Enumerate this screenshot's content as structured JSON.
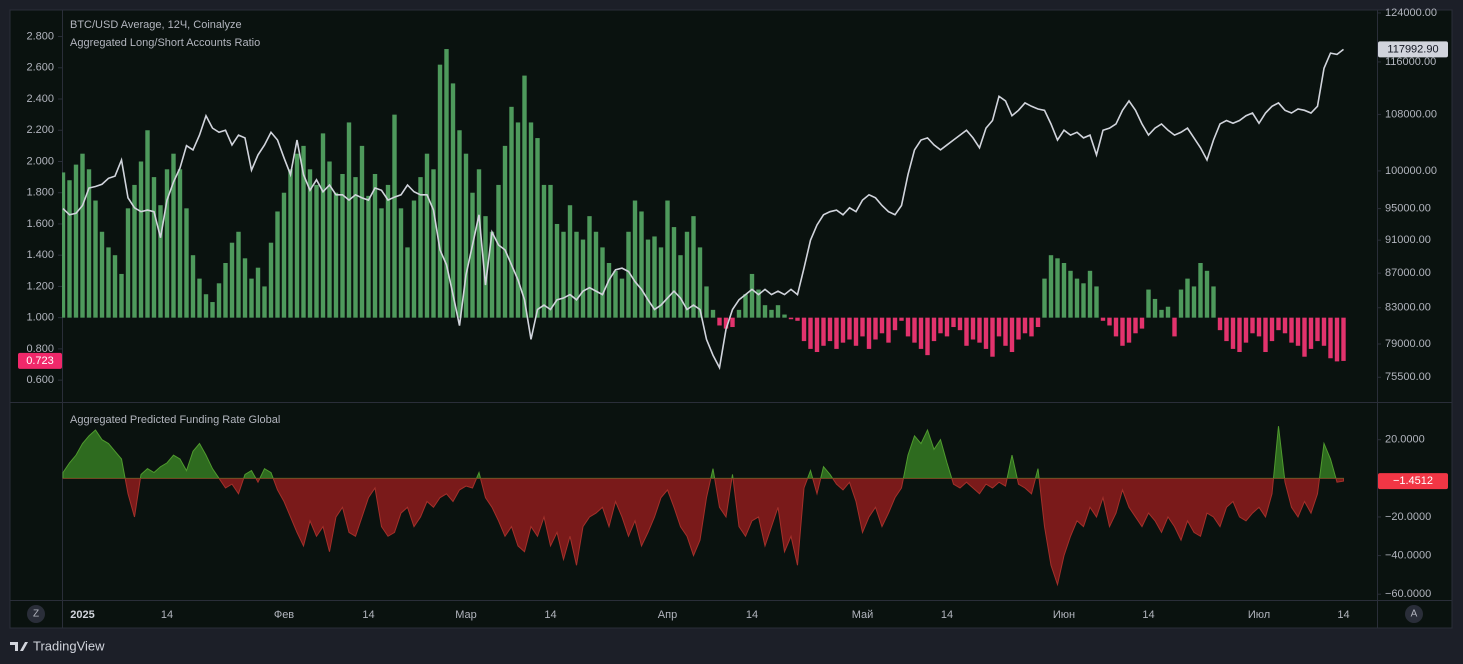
{
  "chart_data": [
    {
      "type": "bar",
      "categories": [
        null,
        null,
        null,
        "2025",
        null,
        null,
        null,
        null,
        null,
        null,
        null,
        null,
        null,
        null,
        null,
        null,
        "14",
        null,
        null,
        null,
        null,
        null,
        null,
        null,
        null,
        null,
        null,
        null,
        null,
        null,
        null,
        null,
        null,
        null,
        "Фев",
        null,
        null,
        null,
        null,
        null,
        null,
        null,
        null,
        null,
        null,
        null,
        null,
        "14",
        null,
        null,
        null,
        null,
        null,
        null,
        null,
        null,
        null,
        null,
        null,
        null,
        null,
        null,
        "Мар",
        null,
        null,
        null,
        null,
        null,
        null,
        null,
        null,
        null,
        null,
        null,
        null,
        "14",
        null,
        null,
        null,
        null,
        null,
        null,
        null,
        null,
        null,
        null,
        null,
        null,
        null,
        null,
        null,
        null,
        null,
        "Апр",
        null,
        null,
        null,
        null,
        null,
        null,
        null,
        null,
        null,
        null,
        null,
        null,
        "14",
        null,
        null,
        null,
        null,
        null,
        null,
        null,
        null,
        null,
        null,
        null,
        null,
        null,
        null,
        null,
        null,
        "Май",
        null,
        null,
        null,
        null,
        null,
        null,
        null,
        null,
        null,
        null,
        null,
        null,
        "14",
        null,
        null,
        null,
        null,
        null,
        null,
        null,
        null,
        null,
        null,
        null,
        null,
        null,
        null,
        null,
        null,
        null,
        "Июн",
        null,
        null,
        null,
        null,
        null,
        null,
        null,
        null,
        null,
        null,
        null,
        null,
        "14",
        null,
        null,
        null,
        null,
        null,
        null,
        null,
        null,
        null,
        null,
        null,
        null,
        null,
        null,
        null,
        null,
        "Июл",
        null,
        null,
        null,
        null,
        null,
        null,
        null,
        null,
        null,
        null,
        null,
        null,
        "14"
      ],
      "series": [
        {
          "name": "Aggregated Long/Short Accounts Ratio",
          "type": "bar",
          "axis": "y",
          "base": 1,
          "color_up": "#4e9a5c",
          "color_down": "#e2336d",
          "badge": {
            "value": 0.723,
            "label": "0.723"
          },
          "badge_color": "#f0286a",
          "badge_text_color": "#ffffff",
          "values": [
            1.93,
            1.88,
            1.98,
            2.05,
            1.95,
            1.75,
            1.55,
            1.45,
            1.4,
            1.28,
            1.7,
            1.85,
            2.0,
            2.2,
            1.9,
            1.72,
            1.95,
            2.05,
            1.95,
            1.7,
            1.4,
            1.25,
            1.15,
            1.1,
            1.22,
            1.35,
            1.48,
            1.55,
            1.38,
            1.25,
            1.32,
            1.2,
            1.48,
            1.68,
            1.8,
            1.95,
            2.05,
            2.1,
            1.95,
            1.85,
            2.18,
            2.0,
            1.8,
            1.92,
            2.25,
            1.9,
            2.1,
            1.78,
            1.92,
            1.7,
            1.85,
            2.3,
            1.7,
            1.45,
            1.75,
            1.9,
            2.05,
            1.95,
            2.62,
            2.72,
            2.5,
            2.2,
            2.05,
            1.8,
            1.95,
            1.65,
            1.55,
            1.85,
            2.1,
            2.35,
            2.25,
            2.55,
            2.25,
            2.15,
            1.85,
            1.85,
            1.6,
            1.55,
            1.72,
            1.55,
            1.5,
            1.65,
            1.55,
            1.45,
            1.35,
            1.3,
            1.25,
            1.55,
            1.75,
            1.68,
            1.5,
            1.52,
            1.45,
            1.75,
            1.58,
            1.4,
            1.55,
            1.65,
            1.45,
            1.2,
            1.05,
            0.95,
            0.93,
            0.94,
            1.05,
            1.15,
            1.28,
            1.18,
            1.08,
            1.05,
            1.08,
            1.02,
            0.99,
            0.98,
            0.85,
            0.8,
            0.78,
            0.82,
            0.85,
            0.8,
            0.84,
            0.86,
            0.82,
            0.88,
            0.8,
            0.86,
            0.9,
            0.84,
            0.92,
            0.98,
            0.88,
            0.84,
            0.8,
            0.76,
            0.85,
            0.9,
            0.88,
            0.94,
            0.92,
            0.82,
            0.86,
            0.84,
            0.8,
            0.75,
            0.88,
            0.82,
            0.78,
            0.86,
            0.9,
            0.88,
            0.94,
            1.25,
            1.4,
            1.38,
            1.35,
            1.3,
            1.25,
            1.22,
            1.3,
            1.2,
            0.98,
            0.95,
            0.88,
            0.82,
            0.84,
            0.9,
            0.93,
            1.18,
            1.12,
            1.05,
            1.07,
            0.88,
            1.18,
            1.25,
            1.2,
            1.35,
            1.3,
            1.2,
            0.92,
            0.85,
            0.8,
            0.78,
            0.84,
            0.9,
            0.88,
            0.78,
            0.85,
            0.92,
            0.9,
            0.84,
            0.82,
            0.75,
            0.8,
            0.85,
            0.82,
            0.74,
            0.72,
            0.723
          ]
        },
        {
          "name": "BTC/USD Average, 12Ч, Coinalyze",
          "type": "line",
          "axis": "y2",
          "color": "#d1d4dc",
          "badge": {
            "value": 117992.9,
            "label": "117992.90"
          },
          "badge_color": "#d1d4dc",
          "badge_text_color": "#131722",
          "values": [
            95000,
            94200,
            94400,
            95400,
            97700,
            97900,
            98200,
            99000,
            99300,
            101500,
            96400,
            95100,
            94600,
            94800,
            94600,
            91300,
            96100,
            98500,
            100400,
            103500,
            102900,
            105000,
            107800,
            106000,
            105400,
            105700,
            103600,
            105000,
            104600,
            100100,
            102200,
            103600,
            105400,
            104300,
            101800,
            99500,
            104300,
            99500,
            97400,
            98800,
            97200,
            98100,
            96800,
            96800,
            96100,
            96800,
            96400,
            96100,
            97700,
            97400,
            96100,
            96500,
            96800,
            98100,
            97200,
            96800,
            96800,
            94800,
            89800,
            88000,
            84500,
            81000,
            86800,
            90400,
            94200,
            85600,
            92000,
            90400,
            89800,
            88000,
            86200,
            83900,
            79500,
            82800,
            83300,
            82800,
            83900,
            84100,
            84500,
            83900,
            84900,
            85300,
            84900,
            84500,
            86200,
            87400,
            87600,
            87200,
            86000,
            85100,
            83900,
            82800,
            83300,
            84100,
            84900,
            84100,
            82800,
            83300,
            82800,
            79500,
            77800,
            76500,
            80600,
            82800,
            83900,
            84500,
            85100,
            84500,
            85100,
            84500,
            84900,
            84500,
            85100,
            84500,
            87600,
            91000,
            92900,
            94200,
            94600,
            94800,
            94200,
            95100,
            94600,
            96100,
            96800,
            96400,
            95400,
            94600,
            94200,
            95400,
            99500,
            102900,
            104300,
            104600,
            103600,
            102900,
            103600,
            104300,
            105000,
            105700,
            104600,
            103200,
            106000,
            107100,
            110700,
            110000,
            107800,
            108600,
            109700,
            109200,
            108800,
            108600,
            106600,
            104300,
            105700,
            105000,
            105400,
            104600,
            105000,
            102200,
            105700,
            106000,
            106600,
            108600,
            110000,
            108600,
            106600,
            105000,
            106000,
            106600,
            105700,
            105000,
            105400,
            106000,
            104600,
            103200,
            101500,
            104300,
            106600,
            107100,
            106700,
            107100,
            107800,
            108200,
            106700,
            108200,
            109200,
            109700,
            108600,
            108200,
            108800,
            108600,
            108200,
            109200,
            115000,
            117400,
            117200,
            117992.9
          ]
        }
      ],
      "ylim": [
        0.46,
        2.97
      ],
      "yticks": [
        {
          "value": 2.8,
          "label": "2.800"
        },
        {
          "value": 2.6,
          "label": "2.600"
        },
        {
          "value": 2.4,
          "label": "2.400"
        },
        {
          "value": 2.2,
          "label": "2.200"
        },
        {
          "value": 2.0,
          "label": "2.000"
        },
        {
          "value": 1.8,
          "label": "1.800"
        },
        {
          "value": 1.6,
          "label": "1.600"
        },
        {
          "value": 1.4,
          "label": "1.400"
        },
        {
          "value": 1.2,
          "label": "1.200"
        },
        {
          "value": 1.0,
          "label": "1.000"
        },
        {
          "value": 0.8,
          "label": "0.800"
        },
        {
          "value": 0.6,
          "label": "0.600"
        }
      ],
      "y2lim": [
        73000,
        124500
      ],
      "y2log": true,
      "y2ticks": [
        {
          "value": 124000,
          "label": "124000.00"
        },
        {
          "value": 116000,
          "label": "116000.00"
        },
        {
          "value": 108000,
          "label": "108000.00"
        },
        {
          "value": 100000,
          "label": "100000.00"
        },
        {
          "value": 95000,
          "label": "95000.00"
        },
        {
          "value": 91000,
          "label": "91000.00"
        },
        {
          "value": 87000,
          "label": "87000.00"
        },
        {
          "value": 83000,
          "label": "83000.00"
        },
        {
          "value": 79000,
          "label": "79000.00"
        },
        {
          "value": 75500,
          "label": "75500.00"
        }
      ],
      "grid": false
    },
    {
      "type": "area",
      "series": [
        {
          "name": "Aggregated Predicted Funding Rate Global",
          "base": 0,
          "color_up": "#2e6b1f",
          "color_down": "#7a1a1a",
          "line_up": "#4f9a2e",
          "line_down": "#a3302a",
          "badge": {
            "value": -1.4512,
            "label": "−1.4512"
          },
          "badge_color": "#f23645",
          "badge_text_color": "#ffffff",
          "values": [
            3,
            8,
            12,
            18,
            22,
            25,
            20,
            18,
            14,
            10,
            -8,
            -20,
            2,
            5,
            3,
            6,
            8,
            12,
            10,
            4,
            14,
            18,
            12,
            5,
            0,
            -5,
            -3,
            -8,
            2,
            4,
            -2,
            5,
            3,
            -6,
            -12,
            -20,
            -28,
            -35,
            -22,
            -30,
            -25,
            -38,
            -20,
            -15,
            -28,
            -30,
            -20,
            -10,
            -5,
            -25,
            -30,
            -28,
            -18,
            -15,
            -25,
            -20,
            -12,
            -15,
            -10,
            -8,
            -12,
            -6,
            -4,
            -5,
            3,
            -10,
            -15,
            -22,
            -30,
            -25,
            -35,
            -38,
            -25,
            -30,
            -20,
            -35,
            -28,
            -42,
            -30,
            -45,
            -25,
            -20,
            -18,
            -15,
            -25,
            -12,
            -20,
            -30,
            -22,
            -35,
            -28,
            -20,
            -10,
            -6,
            -15,
            -25,
            -30,
            -40,
            -32,
            -10,
            5,
            -15,
            -20,
            2,
            -25,
            -30,
            -22,
            -20,
            -35,
            -25,
            -15,
            -38,
            -30,
            -45,
            -5,
            4,
            -8,
            6,
            2,
            -3,
            -6,
            -2,
            -12,
            -28,
            -20,
            -15,
            -25,
            -18,
            -10,
            -5,
            12,
            22,
            18,
            25,
            15,
            20,
            8,
            -3,
            -5,
            -2,
            -5,
            -8,
            -3,
            -5,
            -2,
            -4,
            12,
            -3,
            -5,
            -8,
            5,
            -25,
            -45,
            -55,
            -40,
            -30,
            -22,
            -25,
            -15,
            -20,
            -10,
            -25,
            -18,
            -6,
            -15,
            -20,
            -25,
            -18,
            -22,
            -28,
            -20,
            -25,
            -32,
            -22,
            -28,
            -30,
            -18,
            -20,
            -25,
            -15,
            -12,
            -20,
            -22,
            -18,
            -15,
            -20,
            -8,
            27,
            -2,
            -15,
            -20,
            -12,
            -18,
            -8,
            18,
            10,
            -2,
            -1.4512
          ]
        }
      ],
      "ylim": [
        -63,
        39
      ],
      "yticks": [
        {
          "value": 20,
          "label": "20.0000"
        },
        {
          "value": -20,
          "label": "−20.0000"
        },
        {
          "value": -40,
          "label": "−40.0000"
        },
        {
          "value": -60,
          "label": "−60.0000"
        }
      ],
      "grid": false
    }
  ],
  "ui": {
    "left_button": "Z",
    "right_button": "A",
    "brand": "TradingView"
  }
}
